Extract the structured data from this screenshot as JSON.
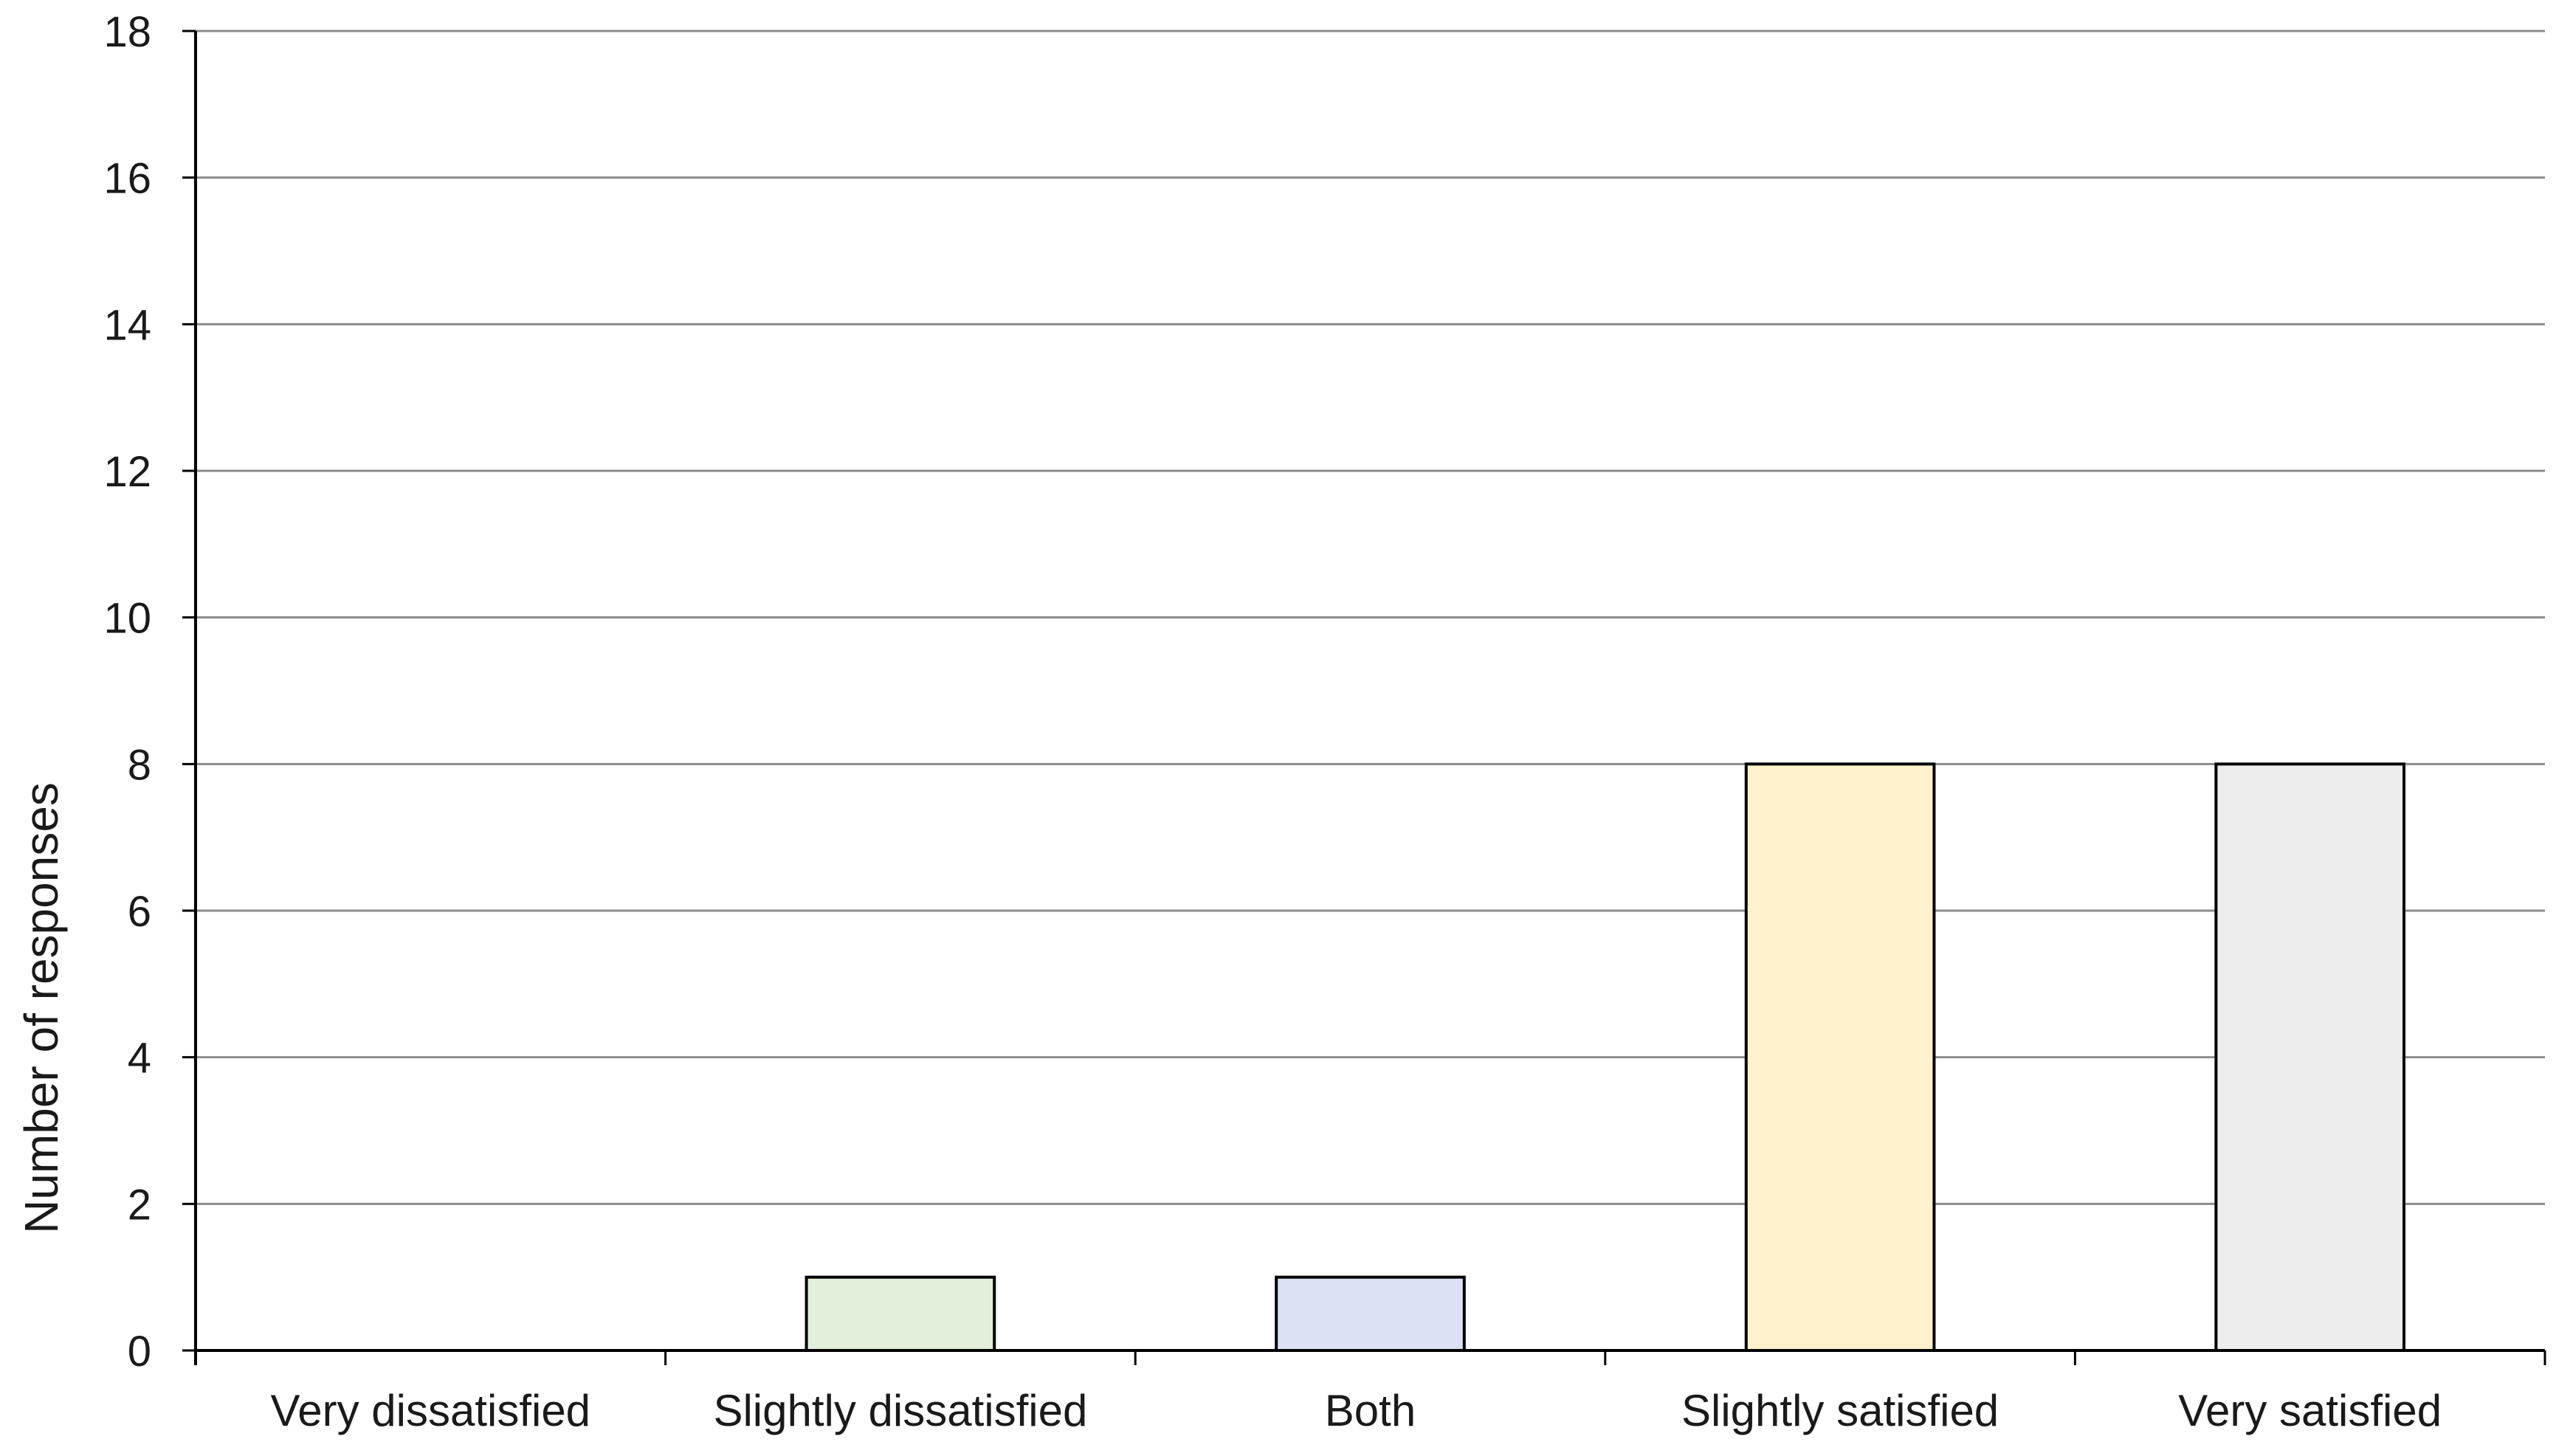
{
  "chart_data": {
    "type": "bar",
    "categories": [
      "Very dissatisfied",
      "Slightly dissatisfied",
      "Both",
      "Slightly satisfied",
      "Very satisfied"
    ],
    "values": [
      0,
      1,
      1,
      8,
      8
    ],
    "colors": [
      "#ffffff",
      "#e2efda",
      "#d9e1f2",
      "#fff2cc",
      "#ededed"
    ],
    "title": "",
    "xlabel": "",
    "ylabel": "Number of responses",
    "ylim": [
      0,
      18
    ],
    "yticks": [
      0,
      2,
      4,
      6,
      8,
      10,
      12,
      14,
      16,
      18
    ],
    "grid": true,
    "legend": "none"
  }
}
